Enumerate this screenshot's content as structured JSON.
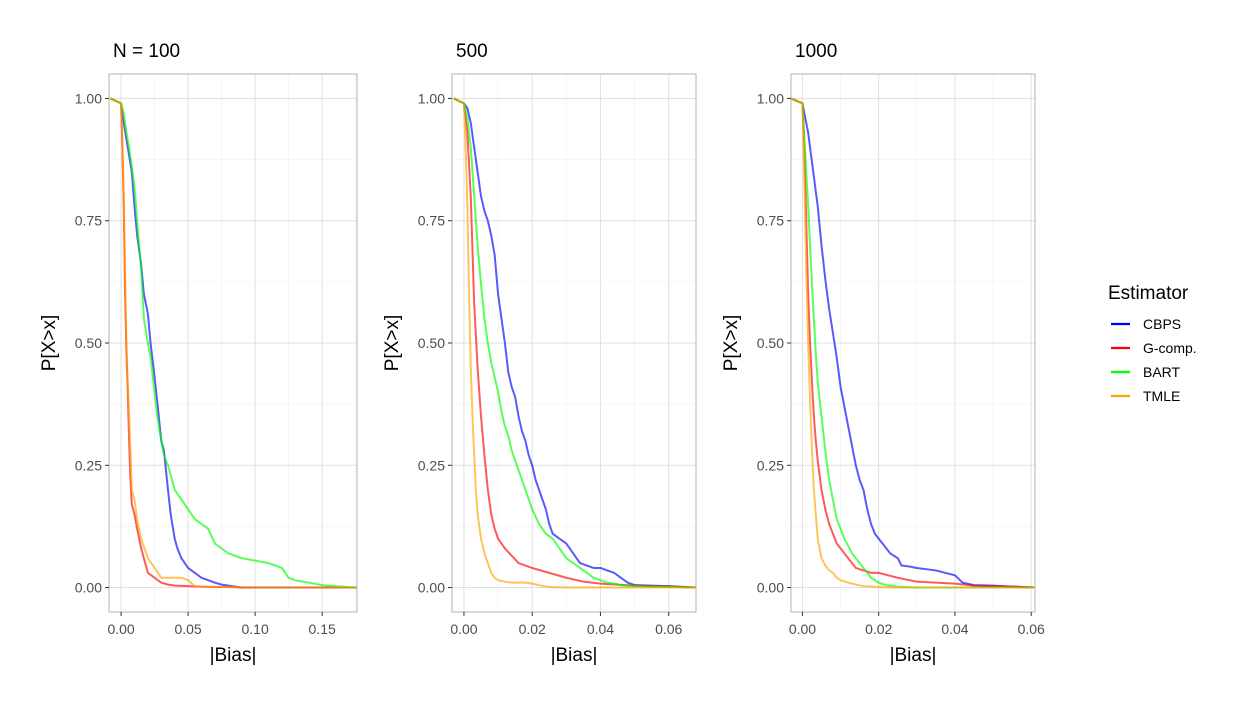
{
  "chart_data": [
    {
      "type": "line",
      "title": "N = 100",
      "xlabel": "|Bias|",
      "ylabel": "P[X>x]",
      "xlim": [
        -0.009,
        0.176
      ],
      "ylim": [
        -0.05,
        1.05
      ],
      "xticks": [
        0,
        0.05,
        0.1,
        0.15
      ],
      "xtick_labels": [
        "0.00",
        "0.05",
        "0.10",
        "0.15"
      ],
      "yticks": [
        0,
        0.25,
        0.5,
        0.75,
        1
      ],
      "ytick_labels": [
        "0.00",
        "0.25",
        "0.50",
        "0.75",
        "1.00"
      ],
      "grid": true,
      "series": [
        {
          "name": "CBPS",
          "x": [
            -0.008,
            0.0,
            0.002,
            0.005,
            0.008,
            0.01,
            0.012,
            0.015,
            0.017,
            0.02,
            0.022,
            0.025,
            0.027,
            0.03,
            0.032,
            0.035,
            0.037,
            0.04,
            0.042,
            0.045,
            0.05,
            0.055,
            0.06,
            0.065,
            0.07,
            0.075,
            0.08,
            0.085,
            0.09,
            0.176
          ],
          "y": [
            1.0,
            0.99,
            0.95,
            0.9,
            0.85,
            0.78,
            0.72,
            0.66,
            0.6,
            0.56,
            0.5,
            0.43,
            0.38,
            0.3,
            0.28,
            0.2,
            0.15,
            0.1,
            0.08,
            0.06,
            0.04,
            0.03,
            0.02,
            0.015,
            0.01,
            0.006,
            0.004,
            0.002,
            0.0,
            0.0
          ]
        },
        {
          "name": "G-comp.",
          "x": [
            -0.008,
            0.0,
            0.001,
            0.002,
            0.003,
            0.004,
            0.005,
            0.006,
            0.007,
            0.008,
            0.01,
            0.012,
            0.015,
            0.018,
            0.02,
            0.025,
            0.03,
            0.035,
            0.04,
            0.05,
            0.06,
            0.07,
            0.08,
            0.09,
            0.176
          ],
          "y": [
            1.0,
            0.99,
            0.9,
            0.78,
            0.6,
            0.48,
            0.4,
            0.3,
            0.22,
            0.17,
            0.15,
            0.12,
            0.08,
            0.05,
            0.03,
            0.02,
            0.01,
            0.006,
            0.004,
            0.003,
            0.002,
            0.001,
            0.001,
            0.0,
            0.0
          ]
        },
        {
          "name": "BART",
          "x": [
            -0.008,
            0.0,
            0.002,
            0.004,
            0.006,
            0.008,
            0.01,
            0.012,
            0.015,
            0.017,
            0.02,
            0.022,
            0.025,
            0.027,
            0.03,
            0.032,
            0.035,
            0.04,
            0.045,
            0.05,
            0.055,
            0.06,
            0.065,
            0.07,
            0.075,
            0.08,
            0.09,
            0.1,
            0.11,
            0.12,
            0.125,
            0.13,
            0.14,
            0.15,
            0.16,
            0.17,
            0.176
          ],
          "y": [
            1.0,
            0.99,
            0.97,
            0.93,
            0.9,
            0.86,
            0.82,
            0.75,
            0.65,
            0.55,
            0.5,
            0.47,
            0.4,
            0.35,
            0.3,
            0.27,
            0.25,
            0.2,
            0.18,
            0.16,
            0.14,
            0.13,
            0.12,
            0.09,
            0.08,
            0.07,
            0.06,
            0.055,
            0.05,
            0.04,
            0.02,
            0.015,
            0.01,
            0.005,
            0.003,
            0.001,
            0.0
          ]
        },
        {
          "name": "TMLE",
          "x": [
            -0.008,
            0.0,
            0.001,
            0.002,
            0.003,
            0.004,
            0.005,
            0.006,
            0.007,
            0.008,
            0.01,
            0.012,
            0.015,
            0.02,
            0.025,
            0.03,
            0.035,
            0.04,
            0.045,
            0.05,
            0.055,
            0.06,
            0.08,
            0.1,
            0.176
          ],
          "y": [
            1.0,
            0.99,
            0.9,
            0.8,
            0.65,
            0.5,
            0.42,
            0.35,
            0.28,
            0.2,
            0.18,
            0.14,
            0.1,
            0.06,
            0.04,
            0.02,
            0.02,
            0.02,
            0.02,
            0.015,
            0.003,
            0.002,
            0.001,
            0.0,
            0.0
          ]
        }
      ]
    },
    {
      "type": "line",
      "title": "500",
      "xlabel": "|Bias|",
      "ylabel": "P[X>x]",
      "xlim": [
        -0.0035,
        0.068
      ],
      "ylim": [
        -0.05,
        1.05
      ],
      "xticks": [
        0,
        0.02,
        0.04,
        0.06
      ],
      "xtick_labels": [
        "0.00",
        "0.02",
        "0.04",
        "0.06"
      ],
      "yticks": [
        0,
        0.25,
        0.5,
        0.75,
        1
      ],
      "ytick_labels": [
        "0.00",
        "0.25",
        "0.50",
        "0.75",
        "1.00"
      ],
      "grid": true,
      "series": [
        {
          "name": "CBPS",
          "x": [
            -0.003,
            0.0,
            0.001,
            0.002,
            0.003,
            0.004,
            0.005,
            0.006,
            0.007,
            0.008,
            0.009,
            0.01,
            0.011,
            0.012,
            0.013,
            0.014,
            0.015,
            0.016,
            0.017,
            0.018,
            0.019,
            0.02,
            0.021,
            0.022,
            0.023,
            0.024,
            0.025,
            0.026,
            0.028,
            0.03,
            0.032,
            0.034,
            0.036,
            0.038,
            0.04,
            0.042,
            0.044,
            0.046,
            0.048,
            0.05,
            0.055,
            0.06,
            0.068
          ],
          "y": [
            1.0,
            0.99,
            0.98,
            0.95,
            0.9,
            0.85,
            0.8,
            0.77,
            0.75,
            0.72,
            0.68,
            0.6,
            0.55,
            0.5,
            0.44,
            0.41,
            0.39,
            0.35,
            0.32,
            0.3,
            0.27,
            0.25,
            0.22,
            0.2,
            0.18,
            0.16,
            0.13,
            0.11,
            0.1,
            0.09,
            0.07,
            0.05,
            0.045,
            0.04,
            0.04,
            0.035,
            0.03,
            0.02,
            0.01,
            0.005,
            0.004,
            0.003,
            0.0
          ]
        },
        {
          "name": "G-comp.",
          "x": [
            -0.003,
            0.0,
            0.001,
            0.002,
            0.003,
            0.004,
            0.005,
            0.006,
            0.007,
            0.008,
            0.009,
            0.01,
            0.011,
            0.012,
            0.014,
            0.016,
            0.018,
            0.02,
            0.025,
            0.03,
            0.035,
            0.04,
            0.045,
            0.05,
            0.055,
            0.06,
            0.068
          ],
          "y": [
            1.0,
            0.99,
            0.93,
            0.8,
            0.58,
            0.45,
            0.35,
            0.27,
            0.2,
            0.15,
            0.12,
            0.1,
            0.09,
            0.08,
            0.065,
            0.05,
            0.045,
            0.04,
            0.03,
            0.02,
            0.012,
            0.008,
            0.006,
            0.004,
            0.003,
            0.002,
            0.0
          ]
        },
        {
          "name": "BART",
          "x": [
            -0.003,
            0.0,
            0.001,
            0.002,
            0.003,
            0.004,
            0.005,
            0.006,
            0.007,
            0.008,
            0.009,
            0.01,
            0.011,
            0.012,
            0.013,
            0.014,
            0.015,
            0.016,
            0.017,
            0.018,
            0.019,
            0.02,
            0.022,
            0.024,
            0.026,
            0.028,
            0.03,
            0.032,
            0.034,
            0.036,
            0.038,
            0.04,
            0.042,
            0.044,
            0.046,
            0.05,
            0.055,
            0.06,
            0.068
          ],
          "y": [
            1.0,
            0.99,
            0.96,
            0.9,
            0.8,
            0.7,
            0.62,
            0.55,
            0.5,
            0.46,
            0.43,
            0.4,
            0.36,
            0.33,
            0.31,
            0.28,
            0.26,
            0.24,
            0.22,
            0.2,
            0.18,
            0.16,
            0.13,
            0.11,
            0.1,
            0.08,
            0.06,
            0.05,
            0.04,
            0.03,
            0.02,
            0.015,
            0.01,
            0.008,
            0.005,
            0.003,
            0.002,
            0.001,
            0.0
          ]
        },
        {
          "name": "TMLE",
          "x": [
            -0.003,
            0.0,
            0.0005,
            0.001,
            0.0015,
            0.002,
            0.0025,
            0.003,
            0.0035,
            0.004,
            0.005,
            0.006,
            0.007,
            0.008,
            0.009,
            0.01,
            0.012,
            0.014,
            0.016,
            0.018,
            0.02,
            0.022,
            0.025,
            0.03,
            0.04,
            0.068
          ],
          "y": [
            1.0,
            0.99,
            0.9,
            0.78,
            0.6,
            0.45,
            0.35,
            0.27,
            0.2,
            0.15,
            0.1,
            0.07,
            0.05,
            0.03,
            0.02,
            0.015,
            0.012,
            0.01,
            0.01,
            0.01,
            0.008,
            0.005,
            0.001,
            0.0,
            0.0,
            0.0
          ]
        }
      ]
    },
    {
      "type": "line",
      "title": "1000",
      "xlabel": "|Bias|",
      "ylabel": "P[X>x]",
      "xlim": [
        -0.003,
        0.061
      ],
      "ylim": [
        -0.05,
        1.05
      ],
      "xticks": [
        0,
        0.02,
        0.04,
        0.06
      ],
      "xtick_labels": [
        "0.00",
        "0.02",
        "0.04",
        "0.06"
      ],
      "yticks": [
        0,
        0.25,
        0.5,
        0.75,
        1
      ],
      "ytick_labels": [
        "0.00",
        "0.25",
        "0.50",
        "0.75",
        "1.00"
      ],
      "grid": true,
      "series": [
        {
          "name": "CBPS",
          "x": [
            -0.003,
            0.0,
            0.0005,
            0.001,
            0.0015,
            0.002,
            0.003,
            0.004,
            0.005,
            0.006,
            0.007,
            0.008,
            0.009,
            0.01,
            0.011,
            0.012,
            0.013,
            0.014,
            0.015,
            0.016,
            0.017,
            0.018,
            0.019,
            0.02,
            0.021,
            0.022,
            0.023,
            0.024,
            0.025,
            0.026,
            0.028,
            0.03,
            0.035,
            0.04,
            0.042,
            0.045,
            0.05,
            0.055,
            0.061
          ],
          "y": [
            1.0,
            0.99,
            0.97,
            0.95,
            0.93,
            0.9,
            0.84,
            0.78,
            0.7,
            0.63,
            0.57,
            0.52,
            0.47,
            0.41,
            0.37,
            0.33,
            0.29,
            0.25,
            0.22,
            0.2,
            0.16,
            0.13,
            0.11,
            0.1,
            0.09,
            0.08,
            0.07,
            0.065,
            0.06,
            0.045,
            0.043,
            0.04,
            0.035,
            0.025,
            0.01,
            0.005,
            0.004,
            0.002,
            0.0
          ]
        },
        {
          "name": "G-comp.",
          "x": [
            -0.003,
            0.0,
            0.0005,
            0.001,
            0.0015,
            0.002,
            0.0025,
            0.003,
            0.0035,
            0.004,
            0.0045,
            0.005,
            0.006,
            0.007,
            0.008,
            0.009,
            0.01,
            0.011,
            0.012,
            0.013,
            0.014,
            0.016,
            0.018,
            0.02,
            0.025,
            0.03,
            0.035,
            0.04,
            0.045,
            0.05,
            0.055,
            0.061
          ],
          "y": [
            1.0,
            0.99,
            0.9,
            0.75,
            0.6,
            0.5,
            0.42,
            0.35,
            0.3,
            0.26,
            0.23,
            0.2,
            0.16,
            0.13,
            0.11,
            0.09,
            0.08,
            0.07,
            0.06,
            0.05,
            0.04,
            0.035,
            0.03,
            0.03,
            0.02,
            0.012,
            0.01,
            0.008,
            0.004,
            0.003,
            0.002,
            0.0
          ]
        },
        {
          "name": "BART",
          "x": [
            -0.003,
            0.0,
            0.0005,
            0.001,
            0.0015,
            0.002,
            0.0025,
            0.003,
            0.0035,
            0.004,
            0.005,
            0.006,
            0.007,
            0.008,
            0.009,
            0.01,
            0.011,
            0.012,
            0.013,
            0.014,
            0.015,
            0.016,
            0.017,
            0.018,
            0.02,
            0.022,
            0.025,
            0.03,
            0.061
          ],
          "y": [
            1.0,
            0.99,
            0.92,
            0.85,
            0.78,
            0.7,
            0.62,
            0.55,
            0.48,
            0.42,
            0.35,
            0.28,
            0.22,
            0.18,
            0.14,
            0.12,
            0.1,
            0.085,
            0.07,
            0.06,
            0.05,
            0.04,
            0.03,
            0.02,
            0.01,
            0.005,
            0.002,
            0.0,
            0.0
          ]
        },
        {
          "name": "TMLE",
          "x": [
            -0.003,
            0.0,
            0.0003,
            0.0006,
            0.001,
            0.0015,
            0.002,
            0.0025,
            0.003,
            0.0035,
            0.004,
            0.005,
            0.006,
            0.007,
            0.008,
            0.009,
            0.01,
            0.012,
            0.014,
            0.016,
            0.02,
            0.025,
            0.061
          ],
          "y": [
            1.0,
            0.99,
            0.9,
            0.8,
            0.65,
            0.5,
            0.38,
            0.28,
            0.2,
            0.15,
            0.1,
            0.06,
            0.045,
            0.035,
            0.03,
            0.02,
            0.015,
            0.01,
            0.006,
            0.003,
            0.001,
            0.0,
            0.0
          ]
        }
      ]
    }
  ],
  "legend": {
    "title": "Estimator",
    "placement": "right",
    "entries": [
      {
        "label": "CBPS",
        "color": "#0000ff"
      },
      {
        "label": "G-comp.",
        "color": "#ff0000"
      },
      {
        "label": "BART",
        "color": "#00ff00"
      },
      {
        "label": "TMLE",
        "color": "#ffa500"
      }
    ]
  },
  "colors": {
    "CBPS": "#0000ff",
    "G-comp.": "#ff0000",
    "BART": "#00ff00",
    "TMLE": "#ffa500",
    "grid_major": "#e0e0e0",
    "grid_minor": "#f0f0f0",
    "panel_border": "#b3b3b3"
  }
}
